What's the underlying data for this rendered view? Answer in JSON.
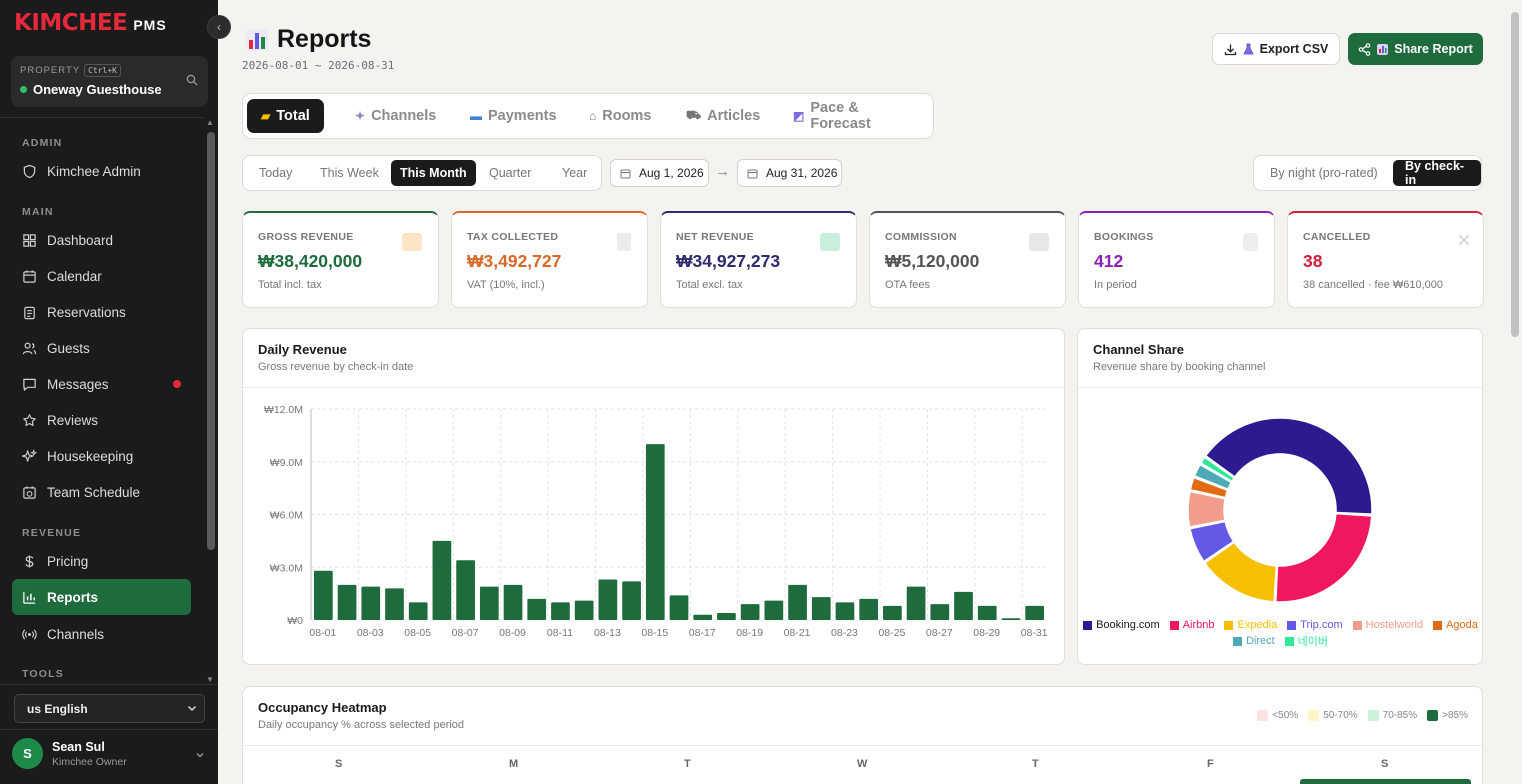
{
  "sidebar": {
    "brand": "KIMCHEE",
    "brand_suffix": "PMS",
    "property_label": "PROPERTY",
    "property_shortcut": "Ctrl+K",
    "property_name": "Oneway Guesthouse",
    "sections": {
      "admin": "ADMIN",
      "main": "MAIN",
      "revenue": "REVENUE",
      "tools": "TOOLS"
    },
    "items": {
      "admin": "Kimchee Admin",
      "dashboard": "Dashboard",
      "calendar": "Calendar",
      "reservations": "Reservations",
      "guests": "Guests",
      "messages": "Messages",
      "reviews": "Reviews",
      "housekeeping": "Housekeeping",
      "team_schedule": "Team Schedule",
      "pricing": "Pricing",
      "reports": "Reports",
      "channels": "Channels"
    },
    "language": "us English",
    "user": {
      "initial": "S",
      "name": "Sean Sul",
      "role": "Kimchee Owner"
    }
  },
  "header": {
    "title": "Reports",
    "date_range": "2026-08-01 ~ 2026-08-31",
    "export_label": "Export CSV",
    "share_label": "Share Report"
  },
  "tabs": {
    "total": "Total",
    "channels": "Channels",
    "payments": "Payments",
    "rooms": "Rooms",
    "articles": "Articles",
    "pace": "Pace & Forecast"
  },
  "period": {
    "today": "Today",
    "week": "This Week",
    "month": "This Month",
    "quarter": "Quarter",
    "year": "Year",
    "start": "Aug 1, 2026",
    "arrow": "→",
    "end": "Aug 31, 2026"
  },
  "mode": {
    "night": "By night (pro-rated)",
    "checkin": "By check-in"
  },
  "kpis": {
    "gross": {
      "label": "GROSS REVENUE",
      "value": "₩38,420,000",
      "sub": "Total incl. tax",
      "color": "#1e6b3d"
    },
    "tax": {
      "label": "TAX COLLECTED",
      "value": "₩3,492,727",
      "sub": "VAT (10%, incl.)",
      "color": "#d9692a"
    },
    "net": {
      "label": "NET REVENUE",
      "value": "₩34,927,273",
      "sub": "Total excl. tax",
      "color": "#2e2b6e"
    },
    "commission": {
      "label": "COMMISSION",
      "value": "₩5,120,000",
      "sub": "OTA fees",
      "color": "#555555"
    },
    "bookings": {
      "label": "BOOKINGS",
      "value": "412",
      "sub": "In period",
      "color": "#8a1fb8"
    },
    "cancelled": {
      "label": "CANCELLED",
      "value": "38",
      "sub": "38 cancelled · fee ₩610,000",
      "color": "#d21f3c"
    }
  },
  "daily": {
    "title": "Daily Revenue",
    "subtitle": "Gross revenue by check-in date"
  },
  "channel_share": {
    "title": "Channel Share",
    "subtitle": "Revenue share by booking channel"
  },
  "heatmap": {
    "title": "Occupancy Heatmap",
    "subtitle": "Daily occupancy % across selected period",
    "legend": [
      "<50%",
      "50-70%",
      "70-85%",
      ">85%"
    ],
    "legend_colors": [
      "#fde2e2",
      "#fdf7c8",
      "#c9f2d8",
      "#1e6b3d"
    ],
    "days": [
      "S",
      "M",
      "T",
      "W",
      "T",
      "F",
      "S"
    ]
  },
  "chart_data": [
    {
      "type": "bar",
      "title": "Daily Revenue",
      "xlabel": "",
      "ylabel": "",
      "ylim": [
        0,
        12000000
      ],
      "y_ticks": [
        "₩0",
        "₩3.0M",
        "₩6.0M",
        "₩9.0M",
        "₩12.0M"
      ],
      "y_tick_values": [
        0,
        3000000,
        6000000,
        9000000,
        12000000
      ],
      "x_tick_labels": [
        "08-01",
        "08-03",
        "08-05",
        "08-07",
        "08-09",
        "08-11",
        "08-13",
        "08-15",
        "08-17",
        "08-19",
        "08-21",
        "08-23",
        "08-25",
        "08-27",
        "08-29",
        "08-31"
      ],
      "categories": [
        "08-01",
        "08-02",
        "08-03",
        "08-04",
        "08-05",
        "08-06",
        "08-07",
        "08-08",
        "08-09",
        "08-10",
        "08-11",
        "08-12",
        "08-13",
        "08-14",
        "08-15",
        "08-16",
        "08-17",
        "08-18",
        "08-19",
        "08-20",
        "08-21",
        "08-22",
        "08-23",
        "08-24",
        "08-25",
        "08-26",
        "08-27",
        "08-28",
        "08-29",
        "08-30",
        "08-31"
      ],
      "values": [
        2800000,
        2000000,
        1900000,
        1800000,
        1000000,
        4500000,
        3400000,
        1900000,
        2000000,
        1200000,
        1000000,
        1100000,
        2300000,
        2200000,
        10000000,
        1400000,
        300000,
        400000,
        900000,
        1100000,
        2000000,
        1300000,
        1000000,
        1200000,
        800000,
        1900000,
        900000,
        1600000,
        800000,
        100000,
        800000
      ],
      "color": "#1e6b3d",
      "grid": true
    },
    {
      "type": "pie",
      "title": "Channel Share",
      "donut": true,
      "categories": [
        "Booking.com",
        "Airbnb",
        "Expedia",
        "Trip.com",
        "Hostelworld",
        "Agoda",
        "Direct",
        "네이버"
      ],
      "values": [
        41,
        25,
        14.5,
        6.5,
        6.5,
        2.5,
        2.5,
        1.5
      ],
      "colors": [
        "#2d1a91",
        "#f01660",
        "#f6c000",
        "#6259e6",
        "#f29c8b",
        "#e06b12",
        "#4ea9b6",
        "#2ee89a"
      ],
      "legend": "bottom"
    }
  ]
}
